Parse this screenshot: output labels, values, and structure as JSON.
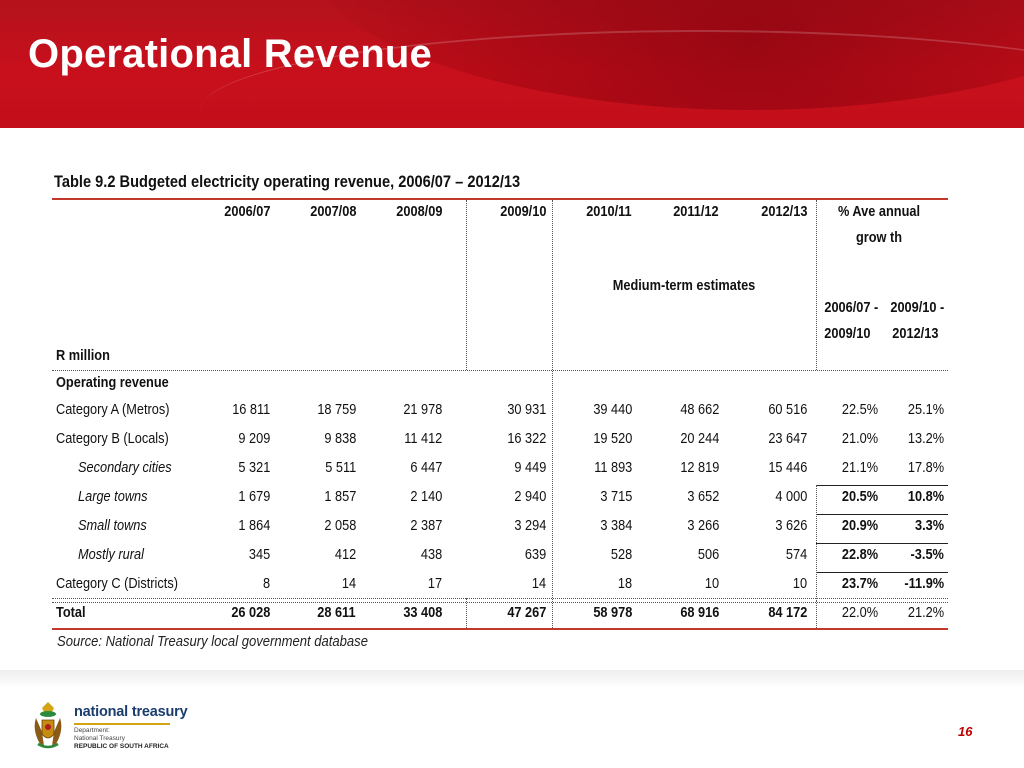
{
  "slide": {
    "title": "Operational Revenue",
    "page_number": "16"
  },
  "table": {
    "caption": "Table 9.2  Budgeted electricity operating revenue, 2006/07 – 2012/13",
    "unit_label": "R million",
    "year_headers": [
      "2006/07",
      "2007/08",
      "2008/09",
      "2009/10",
      "2010/11",
      "2011/12",
      "2012/13"
    ],
    "growth_header_line1": "% Ave annual",
    "growth_header_line2": "grow th",
    "medium_term_label": "Medium-term estimates",
    "growth_periods": [
      {
        "line1": "2006/07 -",
        "line2": "2009/10"
      },
      {
        "line1": "2009/10 -",
        "line2": "2012/13"
      }
    ],
    "section_label": "Operating revenue",
    "rows": [
      {
        "label": "Category A (Metros)",
        "values": [
          "16 811",
          "18 759",
          "21 978",
          "30 931",
          "39 440",
          "48 662",
          "60 516"
        ],
        "growth": [
          "22.5%",
          "25.1%"
        ],
        "style": "normal",
        "growth_bold": false
      },
      {
        "label": "Category B (Locals)",
        "values": [
          "9 209",
          "9 838",
          "11 412",
          "16 322",
          "19 520",
          "20 244",
          "23 647"
        ],
        "growth": [
          "21.0%",
          "13.2%"
        ],
        "style": "normal",
        "growth_bold": false
      },
      {
        "label": "Secondary cities",
        "values": [
          "5 321",
          "5 511",
          "6 447",
          "9 449",
          "11 893",
          "12 819",
          "15 446"
        ],
        "growth": [
          "21.1%",
          "17.8%"
        ],
        "style": "italic",
        "growth_bold": false
      },
      {
        "label": "Large towns",
        "values": [
          "1 679",
          "1 857",
          "2 140",
          "2 940",
          "3 715",
          "3 652",
          "4 000"
        ],
        "growth": [
          "20.5%",
          "10.8%"
        ],
        "style": "italic",
        "growth_bold": true
      },
      {
        "label": "Small towns",
        "values": [
          "1 864",
          "2 058",
          "2 387",
          "3 294",
          "3 384",
          "3 266",
          "3 626"
        ],
        "growth": [
          "20.9%",
          "3.3%"
        ],
        "style": "italic",
        "growth_bold": true
      },
      {
        "label": "Mostly rural",
        "values": [
          "345",
          "412",
          "438",
          "639",
          "528",
          "506",
          "574"
        ],
        "growth": [
          "22.8%",
          "-3.5%"
        ],
        "style": "italic",
        "growth_bold": true
      },
      {
        "label": "Category C (Districts)",
        "values": [
          "8",
          "14",
          "17",
          "14",
          "18",
          "10",
          "10"
        ],
        "growth": [
          "23.7%",
          "-11.9%"
        ],
        "style": "normal",
        "growth_bold": true
      }
    ],
    "total": {
      "label": "Total",
      "values": [
        "26 028",
        "28 611",
        "33 408",
        "47 267",
        "58 978",
        "68 916",
        "84 172"
      ],
      "growth": [
        "22.0%",
        "21.2%"
      ]
    },
    "source": "Source: National Treasury local government database"
  },
  "footer": {
    "logo_name": "national treasury",
    "logo_line1": "Department:",
    "logo_line2": "National Treasury",
    "logo_line3": "REPUBLIC OF SOUTH AFRICA",
    "crest_icon": "coat-of-arms-icon"
  },
  "colors": {
    "header_red": "#c8101c",
    "rule_red": "#c0392b",
    "logo_navy": "#1b3d6e",
    "logo_gold": "#d2a516",
    "page_number_red": "#c00000"
  }
}
